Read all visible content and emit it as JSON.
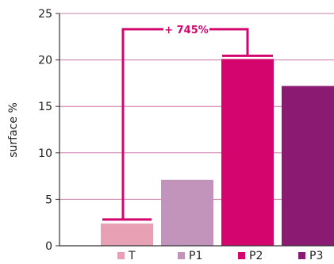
{
  "chart_data": {
    "type": "bar",
    "categories": [
      "T",
      "P1",
      "P2",
      "P3"
    ],
    "values": [
      2.4,
      7.1,
      20.1,
      17.2
    ],
    "colors": [
      "#e8a0b4",
      "#c394bb",
      "#d4066e",
      "#8b1a72"
    ],
    "ylabel": "surface %",
    "ylim": [
      0,
      25
    ],
    "yticks": [
      0,
      5,
      10,
      15,
      20,
      25
    ],
    "grid": true,
    "grid_color": "#c979a8",
    "legend_position": "bottom",
    "annotation": {
      "text": "+ 745%",
      "from": "T",
      "to": "P2",
      "level": 23.3,
      "color": "#d4066e"
    }
  }
}
